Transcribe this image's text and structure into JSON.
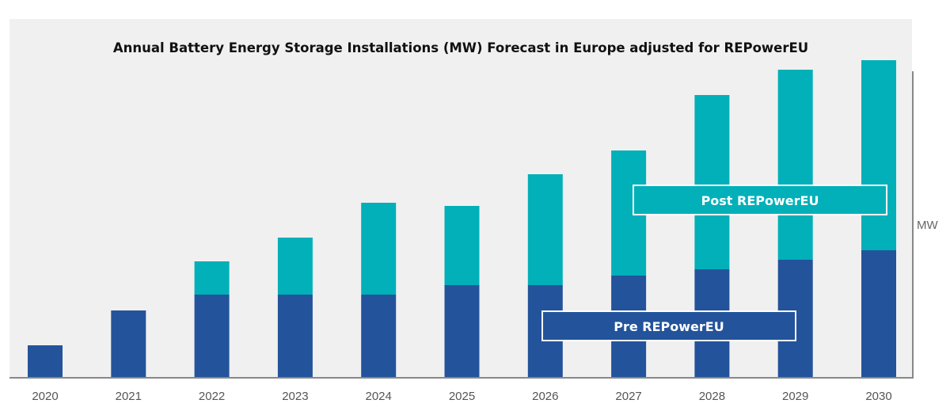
{
  "chart_data": {
    "type": "bar",
    "stacked": true,
    "title": "Annual Battery Energy Storage Installations (MW) Forecast in Europe adjusted for REPowerEU",
    "xlabel": "",
    "ylabel": "MW",
    "y_axis_side": "right",
    "y_ticks_shown": false,
    "ylim": [
      0,
      100
    ],
    "grid": false,
    "categories": [
      "2020",
      "2021",
      "2022",
      "2023",
      "2024",
      "2025",
      "2026",
      "2027",
      "2028",
      "2029",
      "2030"
    ],
    "series": [
      {
        "name": "Pre REPowerEU",
        "color": "#23539b",
        "values": [
          10,
          21,
          26,
          26,
          26,
          29,
          29,
          32,
          34,
          37,
          40
        ]
      },
      {
        "name": "Post REPowerEU",
        "color": "#01b0b8",
        "increment_values": [
          0,
          0,
          10.5,
          18,
          29,
          25,
          35,
          39.5,
          55,
          60,
          60
        ]
      }
    ],
    "legend": {
      "placement": "inline",
      "entries": [
        "Post REPowerEU",
        "Pre REPowerEU"
      ]
    }
  },
  "colors": {
    "plot_background": "#f0f0f0",
    "axis": "#888888",
    "title": "#111111",
    "tick_label": "#555555"
  }
}
